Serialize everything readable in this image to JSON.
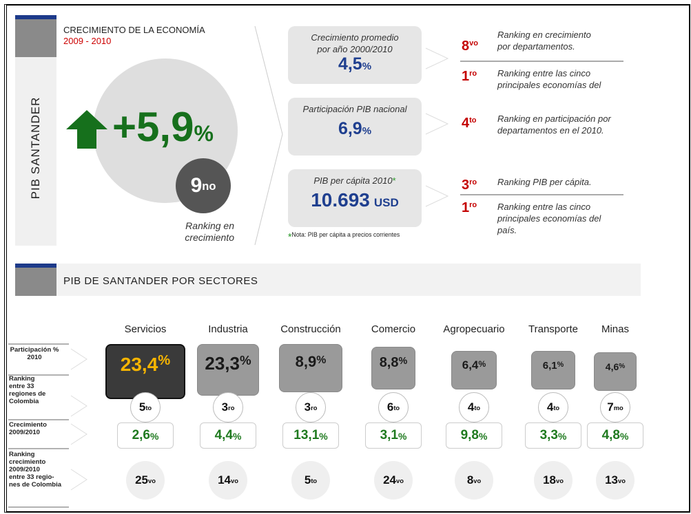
{
  "side_label": "PIB SANTANDER",
  "header": {
    "title": "CRECIMIENTO  DE LA ECONOMÍA",
    "period": "2009 -  2010",
    "growth": "+5,9",
    "percent": "%",
    "rank": "9",
    "rank_suffix": "no",
    "rank_caption": [
      "Ranking en",
      "crecimiento"
    ]
  },
  "indicators": [
    {
      "label": [
        "Crecimiento promedio",
        "por año 2000/2010"
      ],
      "value": "4,5",
      "unit": "%"
    },
    {
      "label": [
        "Participación PIB nacional"
      ],
      "value": "6,9",
      "unit": "%"
    },
    {
      "label": [
        "PIB per cápita 2010"
      ],
      "mark": "*",
      "value": "10.693",
      "unit": "USD"
    }
  ],
  "note": {
    "mark": "*",
    "text": "Nota: PIB per cápita a precios corrientes"
  },
  "rankings": [
    {
      "rank": "8",
      "suffix": "vo",
      "text": [
        "Ranking  en crecimiento",
        "por departamentos."
      ]
    },
    {
      "rank": "1",
      "suffix": "ro",
      "text": [
        "Ranking entre las cinco",
        "principales economías del"
      ]
    },
    {
      "rank": "4",
      "suffix": "to",
      "text": [
        "Ranking en participación por",
        "departamentos en el 2010."
      ]
    },
    {
      "rank": "3",
      "suffix": "ro",
      "text": [
        "Ranking  PIB per cápita."
      ]
    },
    {
      "rank": "1",
      "suffix": "ro",
      "text": [
        "Ranking entre las cinco",
        "principales economías del",
        "país."
      ]
    }
  ],
  "sectors": {
    "title": "PIB DE SANTANDER POR SECTORES",
    "percent": "%",
    "row_labels": [
      [
        "Participación %",
        "2010"
      ],
      [
        "Ranking",
        "entre 33",
        "regiones de",
        "Colombia"
      ],
      [
        "Crecimiento",
        "2009/2010"
      ],
      [
        "Ranking",
        "crecimiento",
        "2009/2010",
        "entre 33 regio-",
        "nes de Colombia"
      ]
    ],
    "items": [
      {
        "name": "Servicios",
        "share": "23,4",
        "rank": "5",
        "rank_suffix": "to",
        "growth": "2,6",
        "growth_rank": "25",
        "growth_rank_suffix": "vo"
      },
      {
        "name": "Industria",
        "share": "23,3",
        "rank": "3",
        "rank_suffix": "ro",
        "growth": "4,4",
        "growth_rank": "14",
        "growth_rank_suffix": "vo"
      },
      {
        "name": "Construcción",
        "share": "8,9",
        "rank": "3",
        "rank_suffix": "ro",
        "growth": "13,1",
        "growth_rank": "5",
        "growth_rank_suffix": "to"
      },
      {
        "name": "Comercio",
        "share": "8,8",
        "rank": "6",
        "rank_suffix": "to",
        "growth": "3,1",
        "growth_rank": "24",
        "growth_rank_suffix": "vo"
      },
      {
        "name": "Agropecuario",
        "share": "6,4",
        "rank": "4",
        "rank_suffix": "to",
        "growth": "9,8",
        "growth_rank": "8",
        "growth_rank_suffix": "vo"
      },
      {
        "name": "Transporte",
        "share": "6,1",
        "rank": "4",
        "rank_suffix": "to",
        "growth": "3,3",
        "growth_rank": "18",
        "growth_rank_suffix": "vo"
      },
      {
        "name": "Minas",
        "share": "4,6",
        "rank": "7",
        "rank_suffix": "mo",
        "growth": "4,8",
        "growth_rank": "13",
        "growth_rank_suffix": "vo"
      }
    ]
  }
}
